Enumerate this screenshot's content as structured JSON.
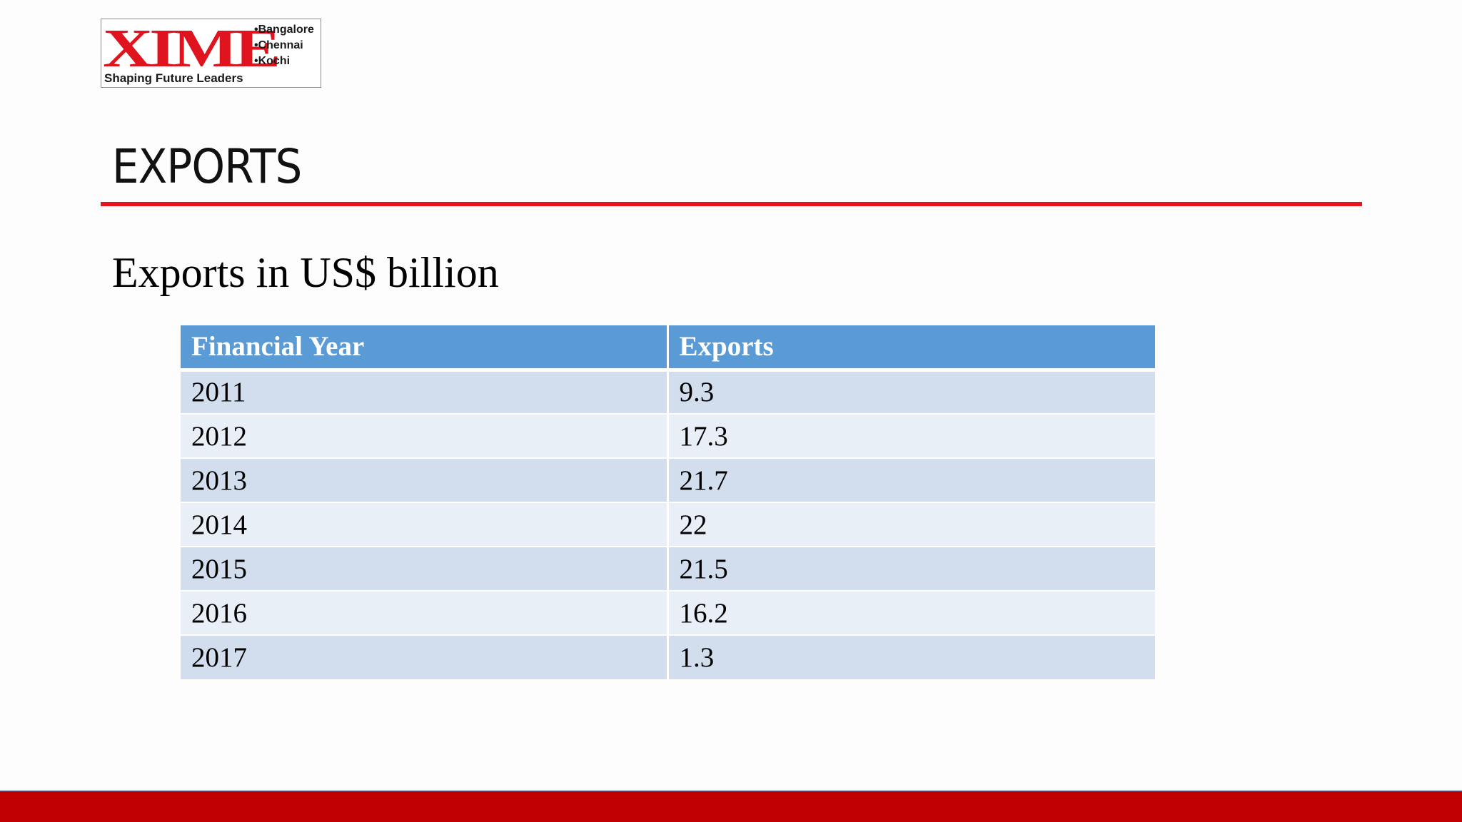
{
  "logo": {
    "mark": "XIME",
    "cities": [
      "•Bangalore",
      "•Chennai",
      "•Kochi"
    ],
    "tagline": "Shaping Future Leaders"
  },
  "title": "EXPORTS",
  "subtitle": "Exports in US$ billion",
  "table": {
    "headers": [
      "Financial Year",
      "Exports"
    ],
    "rows": [
      [
        "2011",
        "9.3"
      ],
      [
        "2012",
        "17.3"
      ],
      [
        "2013",
        "21.7"
      ],
      [
        "2014",
        "22"
      ],
      [
        "2015",
        "21.5"
      ],
      [
        "2016",
        "16.2"
      ],
      [
        "2017",
        "1.3"
      ]
    ]
  },
  "colors": {
    "accent_red": "#e8141b",
    "footer_red": "#c00000",
    "header_blue": "#5b9bd5",
    "row_band_dark": "#d2deed",
    "row_band_light": "#e9eff7"
  }
}
